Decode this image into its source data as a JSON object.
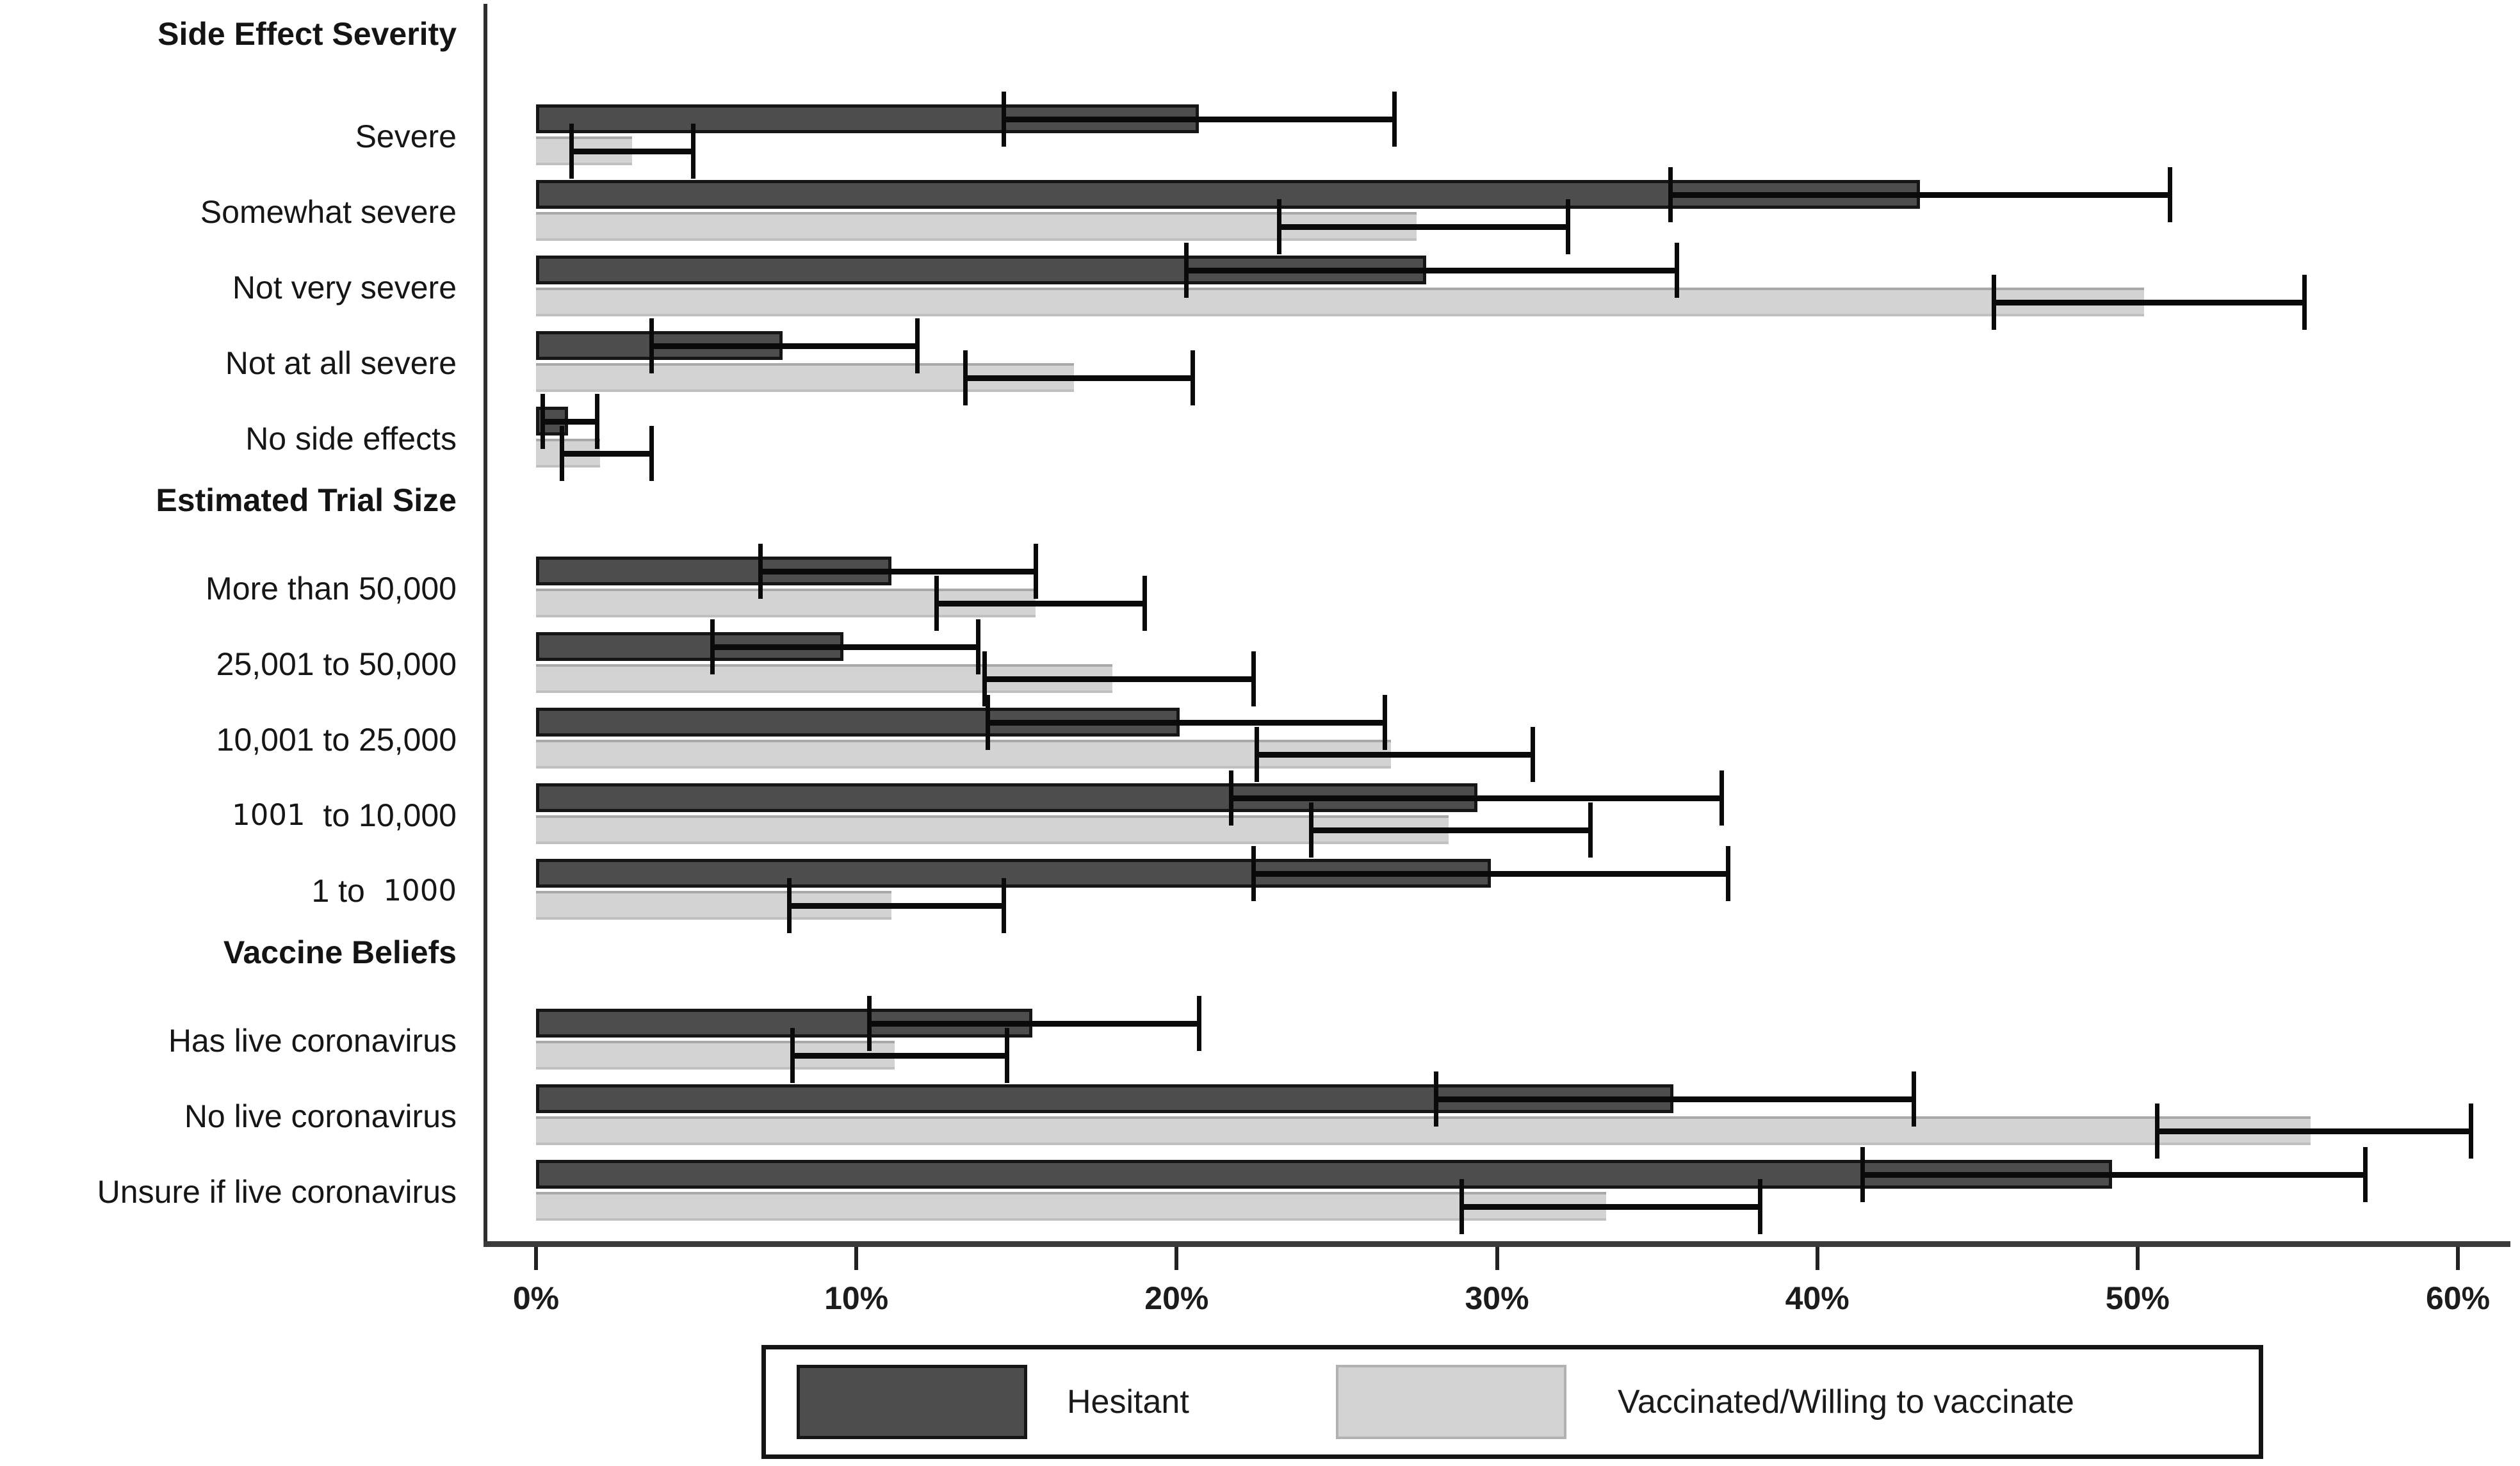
{
  "chart_data": {
    "type": "bar",
    "orientation": "horizontal",
    "unit": "percent",
    "title": "",
    "xlabel": "",
    "ylabel": "",
    "grid": false,
    "x_axis": {
      "min": 0,
      "max": 60,
      "tick_values": [
        0,
        10,
        20,
        30,
        40,
        50,
        60
      ],
      "tick_labels": [
        "0%",
        "10%",
        "20%",
        "30%",
        "40%",
        "50%",
        "60%"
      ]
    },
    "legend": {
      "position": "bottom",
      "entries": [
        {
          "name": "Hesitant",
          "color": "#4d4d4d"
        },
        {
          "name": "Vaccinated/Willing to vaccinate",
          "color": "#d3d3d3"
        }
      ]
    },
    "series_keys": [
      "hesitant",
      "vaccinated"
    ],
    "groups": [
      {
        "header": "Side Effect Severity",
        "items": [
          {
            "label": "Severe",
            "hesitant": {
              "value": 20.7,
              "ci_low": 14.6,
              "ci_high": 26.8
            },
            "vaccinated": {
              "value": 3.0,
              "ci_low": 1.1,
              "ci_high": 4.9
            }
          },
          {
            "label": "Somewhat severe",
            "hesitant": {
              "value": 43.2,
              "ci_low": 35.4,
              "ci_high": 51.0
            },
            "vaccinated": {
              "value": 27.5,
              "ci_low": 23.2,
              "ci_high": 32.2
            }
          },
          {
            "label": "Not very severe",
            "hesitant": {
              "value": 27.8,
              "ci_low": 20.3,
              "ci_high": 35.6
            },
            "vaccinated": {
              "value": 50.2,
              "ci_low": 45.5,
              "ci_high": 55.2
            }
          },
          {
            "label": "Not at all severe",
            "hesitant": {
              "value": 7.7,
              "ci_low": 3.6,
              "ci_high": 11.9
            },
            "vaccinated": {
              "value": 16.8,
              "ci_low": 13.4,
              "ci_high": 20.5
            }
          },
          {
            "label": "No side effects",
            "hesitant": {
              "value": 1.0,
              "ci_low": 0.2,
              "ci_high": 1.9
            },
            "vaccinated": {
              "value": 2.0,
              "ci_low": 0.8,
              "ci_high": 3.6
            }
          }
        ]
      },
      {
        "header": "Estimated Trial Size",
        "items": [
          {
            "label": "More than 50,000",
            "hesitant": {
              "value": 11.1,
              "ci_low": 7.0,
              "ci_high": 15.6
            },
            "vaccinated": {
              "value": 15.6,
              "ci_low": 12.5,
              "ci_high": 19.0
            }
          },
          {
            "label": "25,001 to 50,000",
            "hesitant": {
              "value": 9.6,
              "ci_low": 5.5,
              "ci_high": 13.8
            },
            "vaccinated": {
              "value": 18.0,
              "ci_low": 14.0,
              "ci_high": 22.4
            }
          },
          {
            "label": "10,001 to 25,000",
            "hesitant": {
              "value": 20.1,
              "ci_low": 14.1,
              "ci_high": 26.5
            },
            "vaccinated": {
              "value": 26.7,
              "ci_low": 22.5,
              "ci_high": 31.1
            }
          },
          {
            "label": "1001 to 10,000",
            "label_parts": [
              {
                "text": "1001",
                "alt": true
              },
              {
                "text": "  to 10,000",
                "alt": false
              }
            ],
            "hesitant": {
              "value": 29.4,
              "ci_low": 21.7,
              "ci_high": 37.0
            },
            "vaccinated": {
              "value": 28.5,
              "ci_low": 24.2,
              "ci_high": 32.9
            }
          },
          {
            "label": "1 to 1000",
            "label_parts": [
              {
                "text": "1 to",
                "alt": false
              },
              {
                "text": "  1000",
                "alt": true
              }
            ],
            "hesitant": {
              "value": 29.8,
              "ci_low": 22.4,
              "ci_high": 37.2
            },
            "vaccinated": {
              "value": 11.1,
              "ci_low": 7.9,
              "ci_high": 14.6
            }
          }
        ]
      },
      {
        "header": "Vaccine Beliefs",
        "items": [
          {
            "label": "Has live coronavirus",
            "hesitant": {
              "value": 15.5,
              "ci_low": 10.4,
              "ci_high": 20.7
            },
            "vaccinated": {
              "value": 11.2,
              "ci_low": 8.0,
              "ci_high": 14.7
            }
          },
          {
            "label": "No live coronavirus",
            "hesitant": {
              "value": 35.5,
              "ci_low": 28.1,
              "ci_high": 43.0
            },
            "vaccinated": {
              "value": 55.4,
              "ci_low": 50.6,
              "ci_high": 60.4
            }
          },
          {
            "label": "Unsure if live coronavirus",
            "hesitant": {
              "value": 49.2,
              "ci_low": 41.4,
              "ci_high": 57.1
            },
            "vaccinated": {
              "value": 33.4,
              "ci_low": 28.9,
              "ci_high": 38.2
            }
          }
        ]
      }
    ],
    "colors": {
      "hesitant_fill": "#4d4d4d",
      "hesitant_border": "#161616",
      "vaccinated_fill": "#d3d3d3",
      "error_bar": "#0a0a0a",
      "axis": "#2e2e2e",
      "text": "#161616"
    }
  }
}
